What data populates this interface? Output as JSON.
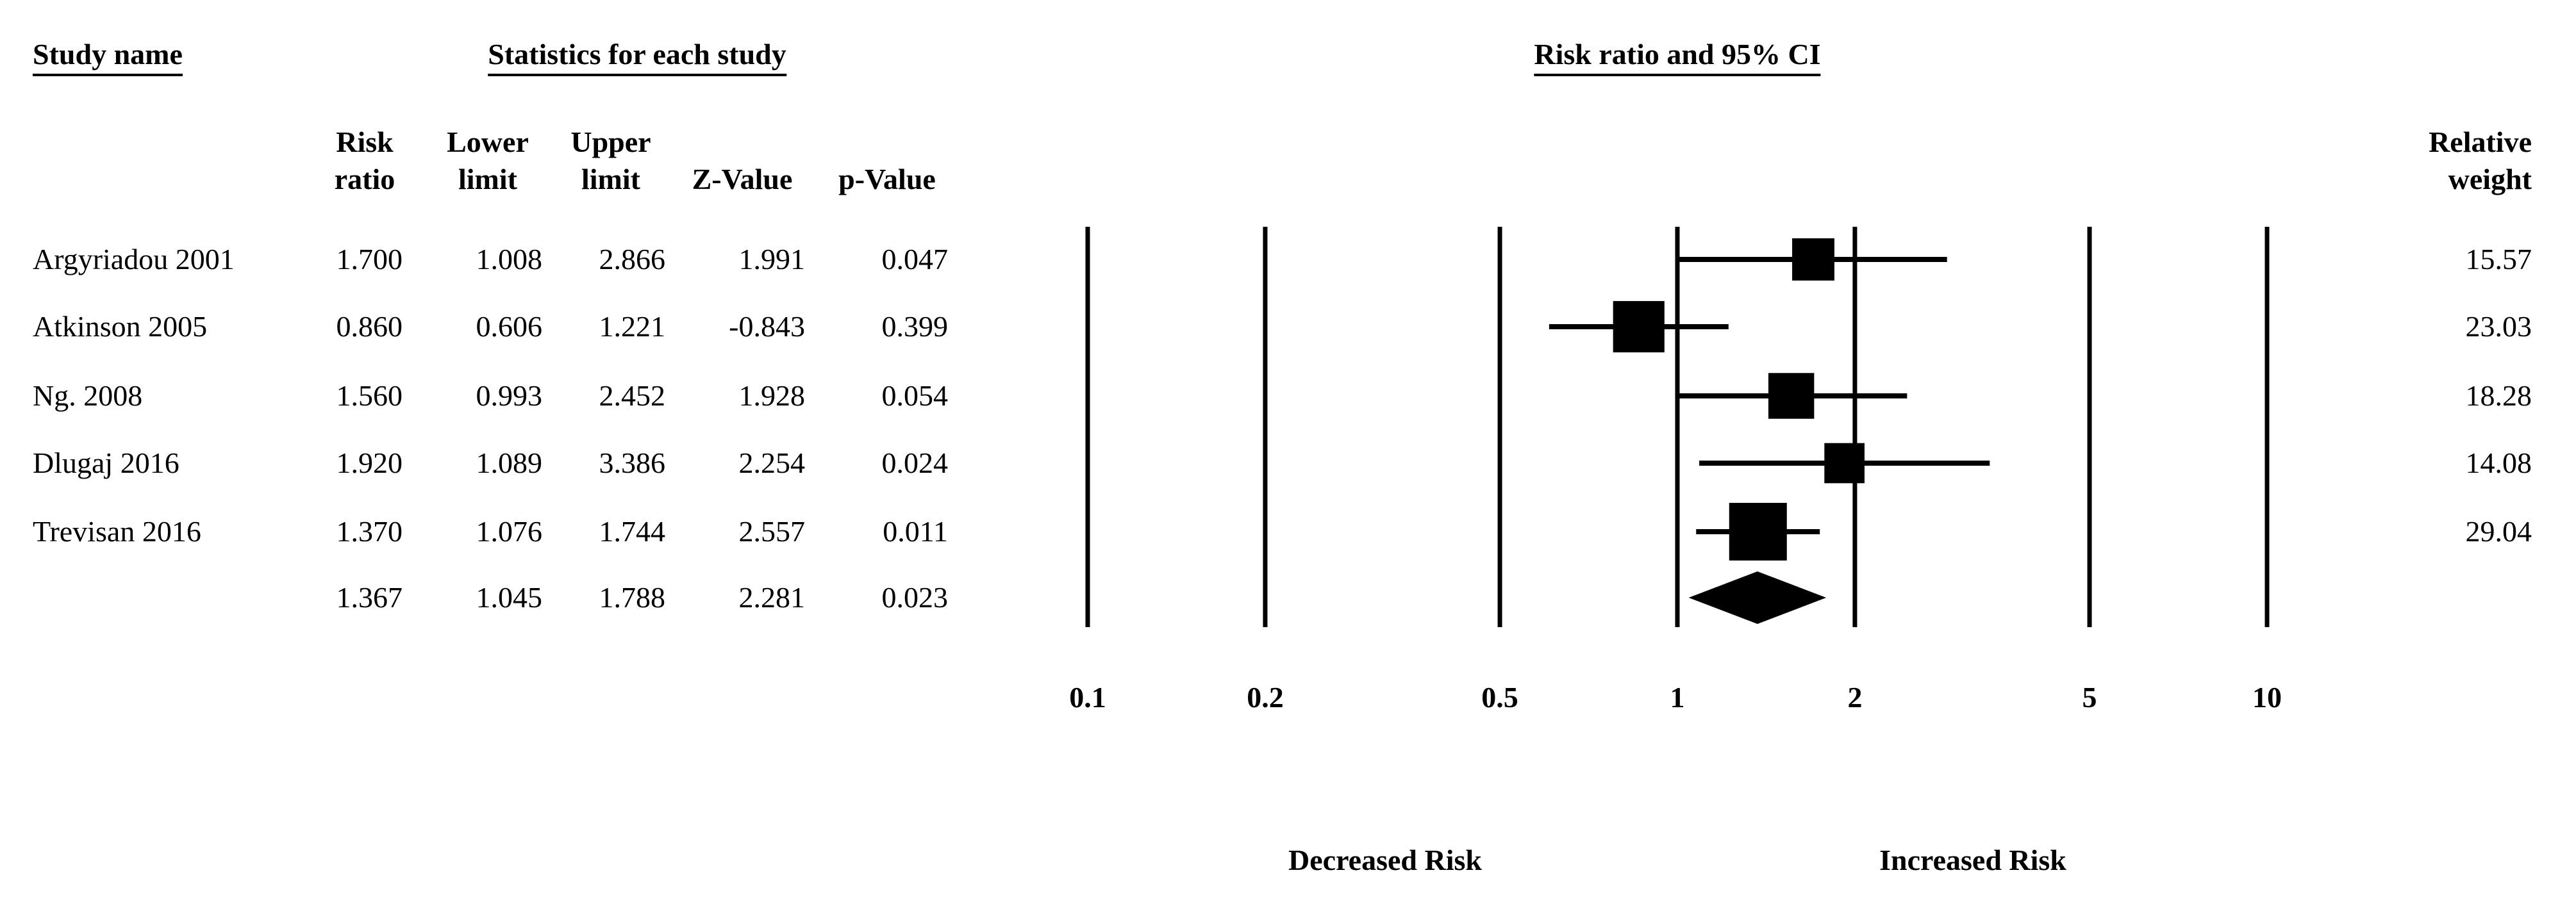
{
  "chart_data": {
    "type": "forest",
    "study_title": "Study name",
    "stats_title": "Statistics for each study",
    "plot_title": "Risk ratio and 95% CI",
    "categories": [
      "Argyriadou 2001",
      "Atkinson 2005",
      "Ng. 2008",
      "Dlugaj 2016",
      "Trevisan 2016",
      null
    ],
    "series": [
      {
        "name": "Risk ratio",
        "values": [
          1.7,
          0.86,
          1.56,
          1.92,
          1.37,
          1.367
        ],
        "value_labels": [
          "1.700",
          "0.860",
          "1.560",
          "1.920",
          "1.370",
          "1.367"
        ]
      },
      {
        "name": "Lower limit",
        "values": [
          1.008,
          0.606,
          0.993,
          1.089,
          1.076,
          1.045
        ]
      },
      {
        "name": "Upper limit",
        "values": [
          2.866,
          1.221,
          2.452,
          3.386,
          1.744,
          1.788
        ]
      },
      {
        "name": "Z-Value",
        "values": [
          1.991,
          -0.843,
          1.928,
          2.254,
          2.557,
          2.281
        ]
      },
      {
        "name": "p-Value",
        "values": [
          0.047,
          0.399,
          0.054,
          0.024,
          0.011,
          0.023
        ]
      }
    ],
    "weight_title": "Relative weight",
    "weights": [
      15.57,
      23.03,
      18.28,
      14.08,
      29.04,
      null
    ],
    "xscale": "log",
    "xlim": [
      0.1,
      10
    ],
    "xticks": [
      0.1,
      0.2,
      0.5,
      1,
      2,
      5,
      10
    ],
    "grid": true,
    "left_label": "Decreased Risk",
    "right_label": "Increased Risk",
    "color": "#000000"
  }
}
